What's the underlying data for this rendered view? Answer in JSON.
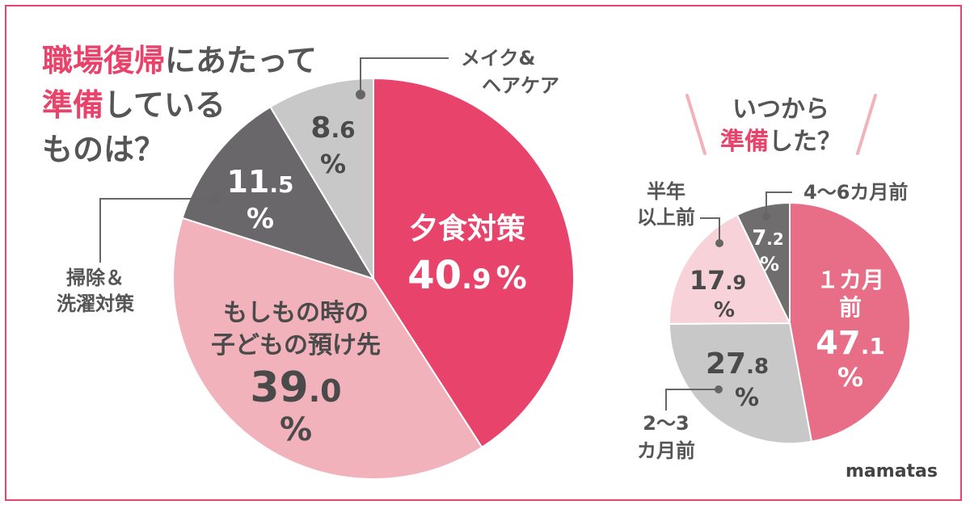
{
  "title": {
    "line1_pink": "職場復帰",
    "line1_rest": "にあたって",
    "line2_pink": "準備",
    "line2_rest": "している",
    "line3": "ものは？"
  },
  "subtitle": {
    "line1": "いつから",
    "line2_pink": "準備",
    "line2_rest": "した？"
  },
  "brand": "mamatas",
  "colors": {
    "pink": "#e8436a",
    "light_pink": "#f2b2bc",
    "pale_pink": "#f7d3d9",
    "gray": "#c8c8c8",
    "dark_gray": "#696769",
    "mid_pink": "#e86d86",
    "mid_gray": "#6f6d6e"
  },
  "chart_data": [
    {
      "type": "pie",
      "title": "職場復帰にあたって準備しているものは？",
      "unit": "%",
      "slices": [
        {
          "label": "夕食対策",
          "value": 40.9,
          "int": "40",
          "dec": ".9",
          "pct": "%",
          "color": "#e8436a"
        },
        {
          "label": "もしもの時の子どもの預け先",
          "label_l1": "もしもの時の",
          "label_l2": "子どもの預け先",
          "value": 39.0,
          "int": "39",
          "dec": ".0",
          "pct": "%",
          "color": "#f2b2bc"
        },
        {
          "label": "掃除&洗濯対策",
          "label_l1": "掃除＆",
          "label_l2": "洗濯対策",
          "value": 11.5,
          "int": "11",
          "dec": ".5",
          "pct": "%",
          "color": "#696769"
        },
        {
          "label": "メイク&ヘアケア",
          "label_l1": "メイク&",
          "label_l2": "ヘアケア",
          "value": 8.6,
          "int": "8",
          "dec": ".6",
          "pct": "%",
          "color": "#c8c8c8"
        }
      ]
    },
    {
      "type": "pie",
      "title": "いつから準備した？",
      "unit": "%",
      "slices": [
        {
          "label": "1カ月前",
          "label_l1": "１カ月",
          "label_l2": "前",
          "value": 47.1,
          "int": "47",
          "dec": ".1",
          "pct": "%",
          "color": "#e86d86"
        },
        {
          "label": "2〜3カ月前",
          "label_l1": "2〜3",
          "label_l2": "カ月前",
          "value": 27.8,
          "int": "27",
          "dec": ".8",
          "pct": "%",
          "color": "#c8c8c8"
        },
        {
          "label": "半年以上前",
          "label_l1": "半年",
          "label_l2": "以上前",
          "value": 17.9,
          "int": "17",
          "dec": ".9",
          "pct": "%",
          "color": "#f7d3d9"
        },
        {
          "label": "4〜6カ月前",
          "value": 7.2,
          "int": "7",
          "dec": ".2",
          "pct": "%",
          "color": "#6f6d6e"
        }
      ]
    }
  ]
}
